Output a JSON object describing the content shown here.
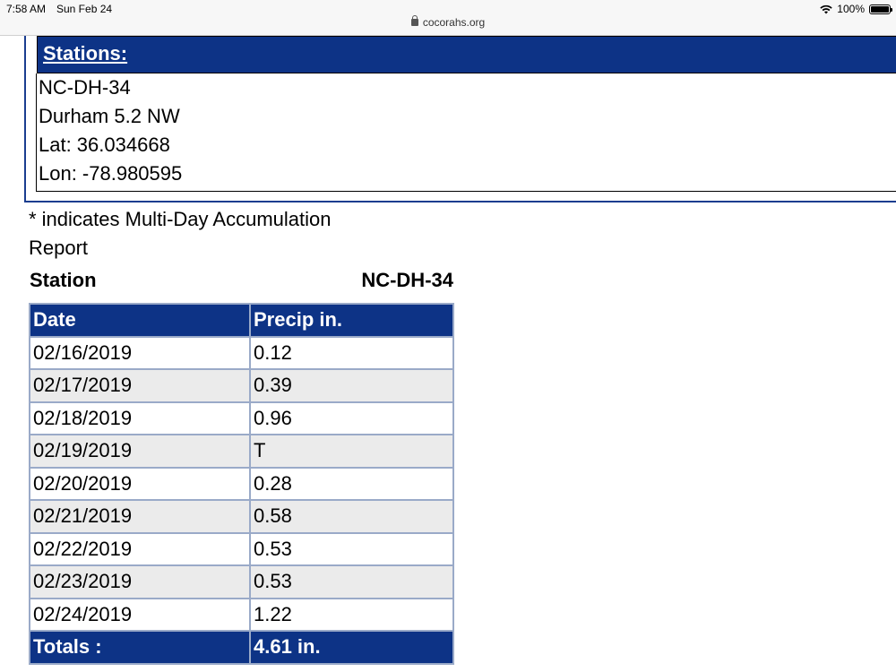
{
  "status_bar": {
    "time": "7:58 AM",
    "date": "Sun Feb 24",
    "battery": "100%",
    "battery_level": 1.0,
    "url": "cocorahs.org"
  },
  "stations_panel": {
    "header": "Stations:",
    "station_id": "NC-DH-34",
    "station_name": "Durham 5.2 NW",
    "lat": "Lat: 36.034668",
    "lon": "Lon: -78.980595"
  },
  "note_line1": "* indicates Multi-Day Accumulation",
  "note_line2": "Report",
  "station_label": "Station",
  "station_value": "NC-DH-34",
  "table": {
    "headers": [
      "Date",
      "Precip in."
    ],
    "rows": [
      [
        "02/16/2019",
        "0.12"
      ],
      [
        "02/17/2019",
        "0.39"
      ],
      [
        "02/18/2019",
        "0.96"
      ],
      [
        "02/19/2019",
        "T"
      ],
      [
        "02/20/2019",
        "0.28"
      ],
      [
        "02/21/2019",
        "0.58"
      ],
      [
        "02/22/2019",
        "0.53"
      ],
      [
        "02/23/2019",
        "0.53"
      ],
      [
        "02/24/2019",
        "1.22"
      ]
    ],
    "total_label": "Totals :",
    "total_value": "4.61 in."
  },
  "colors": {
    "header_blue": "#0d3386",
    "border_blue": "#9aaac8",
    "alt_row": "#ebebeb"
  }
}
